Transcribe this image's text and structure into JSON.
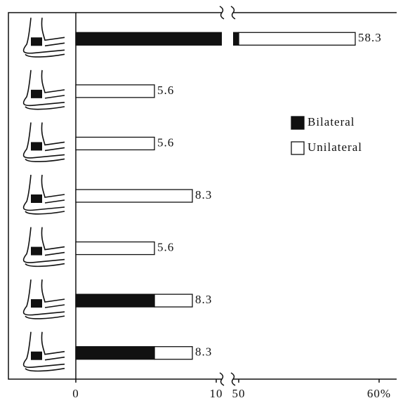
{
  "chart_data": {
    "type": "stacked-barh",
    "categories": [
      null,
      null,
      null,
      null,
      null,
      null,
      null
    ],
    "series": [
      {
        "name": "Bilateral",
        "color": "#111111",
        "values": [
          50.0,
          0,
          0,
          0,
          0,
          5.6,
          5.6
        ]
      },
      {
        "name": "Unilateral",
        "color": "#ffffff",
        "values": [
          8.3,
          5.6,
          5.6,
          8.3,
          5.6,
          2.7,
          2.7
        ]
      }
    ],
    "totals": [
      58.3,
      5.6,
      5.6,
      8.3,
      5.6,
      8.3,
      8.3
    ],
    "xlim": [
      0,
      60
    ],
    "x_break": [
      10,
      50
    ],
    "xticks": [
      0,
      10,
      50,
      {
        "value": 60,
        "label": "60%"
      }
    ],
    "legend": "right"
  }
}
